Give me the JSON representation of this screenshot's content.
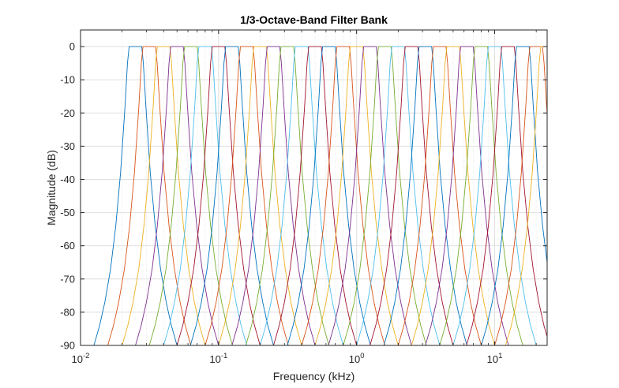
{
  "chart_data": {
    "type": "line",
    "title": "1/3-Octave-Band Filter Bank",
    "xlabel": "Frequency (kHz)",
    "ylabel": "Magnitude (dB)",
    "xscale": "log",
    "xlim": [
      0.01,
      24
    ],
    "ylim": [
      -90,
      5
    ],
    "grid": true,
    "legend": "none",
    "x_tick_labels": [
      {
        "base": "10",
        "exp": "-2"
      },
      {
        "base": "10",
        "exp": "-1"
      },
      {
        "base": "10",
        "exp": "0"
      },
      {
        "base": "10",
        "exp": "1"
      }
    ],
    "x_tick_values": [
      0.01,
      0.1,
      1,
      10
    ],
    "y_ticks": [
      0,
      -10,
      -20,
      -30,
      -40,
      -50,
      -60,
      -70,
      -80,
      -90
    ],
    "y_tick_labels": [
      "0",
      "-10",
      "-20",
      "-30",
      "-40",
      "-50",
      "-60",
      "-70",
      "-80",
      "-90"
    ],
    "series_colors": [
      "#0072bd",
      "#d95319",
      "#edb120",
      "#7e2f8e",
      "#77ac30",
      "#4dbeee",
      "#a2142f"
    ],
    "filter_response": {
      "relative_frequency": [
        0.5,
        0.55,
        0.6,
        0.66,
        0.72,
        0.78,
        0.84,
        0.875,
        0.9,
        1.0,
        1.11,
        1.14,
        1.19,
        1.28,
        1.39,
        1.52,
        1.67,
        1.82,
        2.0
      ],
      "magnitude_db": [
        -90,
        -84,
        -77,
        -67,
        -54,
        -38,
        -18,
        -5,
        0,
        0,
        0,
        -5,
        -18,
        -38,
        -54,
        -67,
        -77,
        -84,
        -90
      ]
    },
    "series": [
      {
        "center_khz": 0.025
      },
      {
        "center_khz": 0.0315
      },
      {
        "center_khz": 0.04
      },
      {
        "center_khz": 0.05
      },
      {
        "center_khz": 0.063
      },
      {
        "center_khz": 0.08
      },
      {
        "center_khz": 0.1
      },
      {
        "center_khz": 0.125
      },
      {
        "center_khz": 0.16
      },
      {
        "center_khz": 0.2
      },
      {
        "center_khz": 0.25
      },
      {
        "center_khz": 0.315
      },
      {
        "center_khz": 0.4
      },
      {
        "center_khz": 0.5
      },
      {
        "center_khz": 0.63
      },
      {
        "center_khz": 0.8
      },
      {
        "center_khz": 1.0
      },
      {
        "center_khz": 1.25
      },
      {
        "center_khz": 1.6
      },
      {
        "center_khz": 2.0
      },
      {
        "center_khz": 2.5
      },
      {
        "center_khz": 3.15
      },
      {
        "center_khz": 4.0
      },
      {
        "center_khz": 5.0
      },
      {
        "center_khz": 6.3
      },
      {
        "center_khz": 8.0
      },
      {
        "center_khz": 10.0
      },
      {
        "center_khz": 12.5
      },
      {
        "center_khz": 16.0
      },
      {
        "center_khz": 20.0
      },
      {
        "center_khz": 24.0
      }
    ]
  }
}
